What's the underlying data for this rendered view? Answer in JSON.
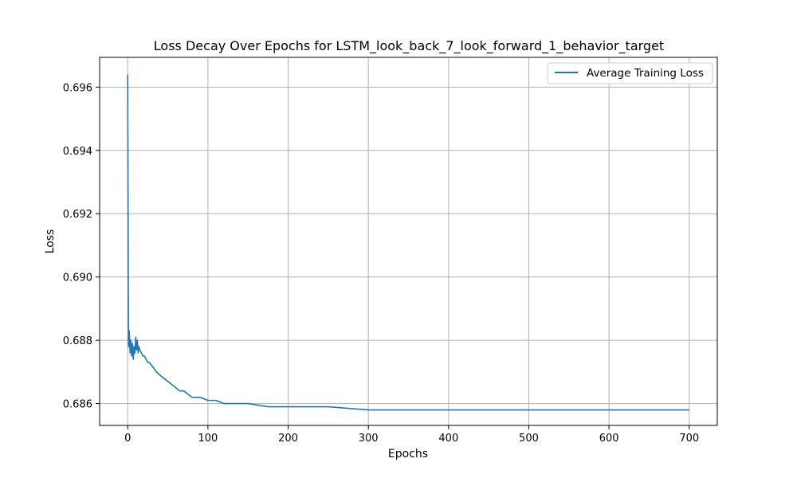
{
  "chart_data": {
    "type": "line",
    "title": "Loss Decay Over Epochs for LSTM_look_back_7_look_forward_1_behavior_target",
    "xlabel": "Epochs",
    "ylabel": "Loss",
    "xlim": [
      -35,
      735
    ],
    "ylim": [
      0.68531,
      0.69694
    ],
    "xticks": [
      0,
      100,
      200,
      300,
      400,
      500,
      600,
      700
    ],
    "yticks": [
      0.686,
      0.688,
      0.69,
      0.692,
      0.694,
      0.696
    ],
    "ytick_labels": [
      "0.686",
      "0.688",
      "0.690",
      "0.692",
      "0.694",
      "0.696"
    ],
    "grid": true,
    "legend_position": "top-right",
    "colors": {
      "series": "#1f77b4",
      "grid": "#b0b0b0",
      "axes": "#000000"
    },
    "series": [
      {
        "name": "Average Training Loss",
        "x": [
          0,
          1,
          2,
          3,
          4,
          5,
          6,
          7,
          8,
          9,
          10,
          11,
          12,
          13,
          14,
          15,
          17,
          19,
          21,
          23,
          25,
          27,
          30,
          33,
          36,
          40,
          45,
          50,
          55,
          60,
          65,
          70,
          75,
          80,
          90,
          100,
          110,
          120,
          130,
          140,
          150,
          175,
          200,
          250,
          300,
          350,
          400,
          450,
          500,
          550,
          600,
          650,
          700
        ],
        "values": [
          0.6964,
          0.6878,
          0.6883,
          0.6876,
          0.688,
          0.6875,
          0.6879,
          0.6874,
          0.6878,
          0.6876,
          0.6881,
          0.6877,
          0.688,
          0.6876,
          0.6878,
          0.6877,
          0.6876,
          0.6875,
          0.6875,
          0.6874,
          0.6873,
          0.6873,
          0.6872,
          0.6871,
          0.687,
          0.6869,
          0.6868,
          0.6867,
          0.6866,
          0.6865,
          0.6864,
          0.6864,
          0.6863,
          0.6862,
          0.6862,
          0.6861,
          0.6861,
          0.686,
          0.686,
          0.686,
          0.686,
          0.6859,
          0.6859,
          0.6859,
          0.6858,
          0.6858,
          0.6858,
          0.6858,
          0.6858,
          0.6858,
          0.6858,
          0.6858,
          0.6858
        ]
      }
    ]
  }
}
